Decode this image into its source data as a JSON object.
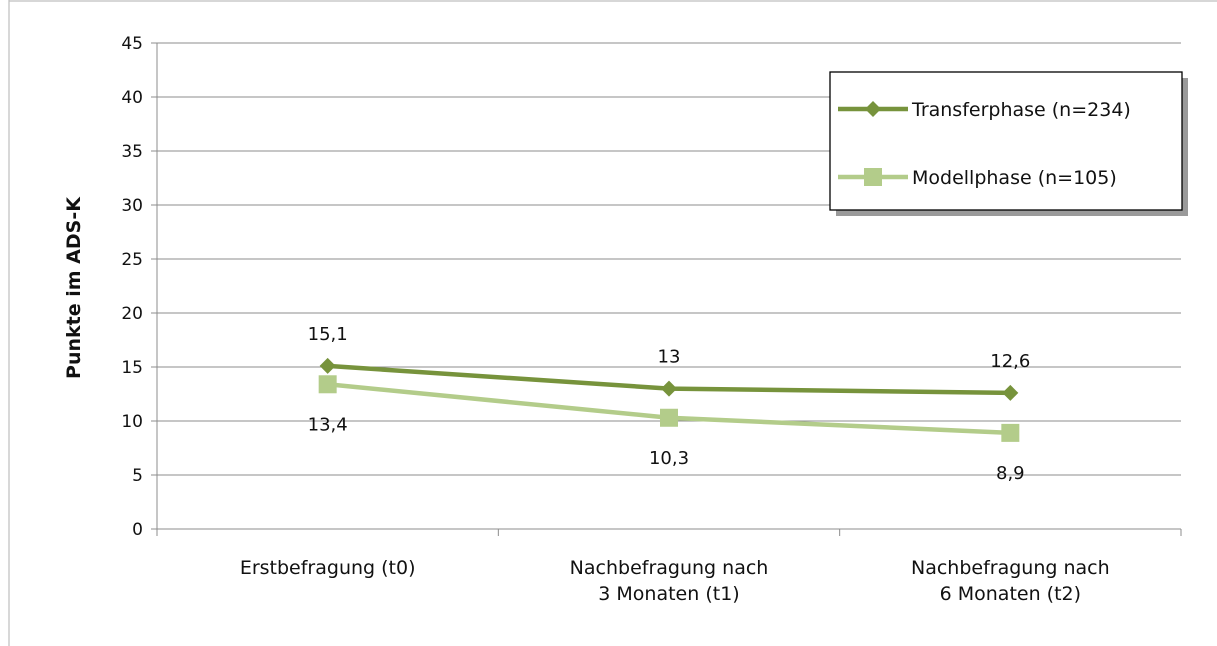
{
  "chart_data": {
    "type": "line",
    "ylabel": "Punkte im ADS-K",
    "xlabel": "",
    "ylim": [
      0,
      45
    ],
    "yticks": [
      0,
      5,
      10,
      15,
      20,
      25,
      30,
      35,
      40,
      45
    ],
    "ytick_labels": [
      "0",
      "5",
      "10",
      "15",
      "20",
      "25",
      "30",
      "35",
      "40",
      "45"
    ],
    "grid": "horizontal",
    "legend_position": "top-right",
    "categories": [
      [
        "Erstbefragung (t0)"
      ],
      [
        "Nachbefragung nach",
        "3 Monaten (t1)"
      ],
      [
        "Nachbefragung nach",
        "6 Monaten (t2)"
      ]
    ],
    "series": [
      {
        "name": "Transferphase (n=234)",
        "values": [
          15.1,
          13,
          12.6
        ],
        "labels": [
          "15,1",
          "13",
          "12,6"
        ],
        "color": "#77933c",
        "marker": "diamond"
      },
      {
        "name": "Modellphase (n=105)",
        "values": [
          13.4,
          10.3,
          8.9
        ],
        "labels": [
          "13,4",
          "10,3",
          "8,9"
        ],
        "color": "#b3cc8a",
        "marker": "square"
      }
    ]
  }
}
